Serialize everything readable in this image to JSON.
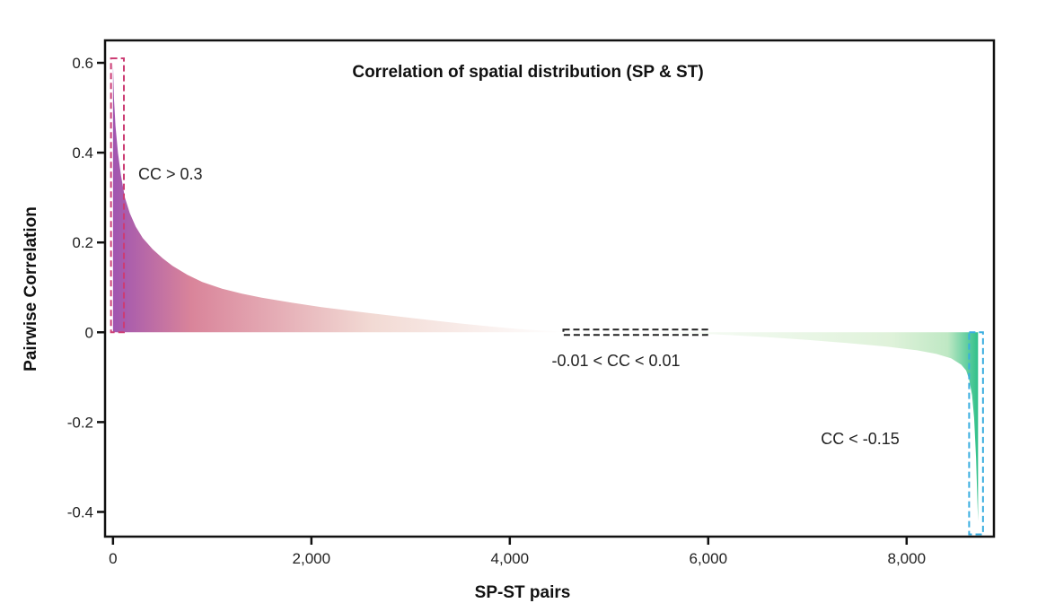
{
  "chart_data": {
    "type": "area",
    "title": "Correlation of spatial distribution (SP & ST)",
    "xlabel": "SP-ST pairs",
    "ylabel": "Pairwise Correlation",
    "xlim": [
      -80,
      8880
    ],
    "ylim": [
      -0.455,
      0.65
    ],
    "x_ticks": [
      0,
      2000,
      4000,
      6000,
      8000
    ],
    "x_tick_labels": [
      "0",
      "2,000",
      "4,000",
      "6,000",
      "8,000"
    ],
    "y_ticks": [
      0.6,
      0.4,
      0.2,
      0,
      -0.2,
      -0.4
    ],
    "y_tick_labels": [
      "0.6",
      "0.4",
      "0.2",
      "0",
      "-0.2",
      "-0.4"
    ],
    "grid": false,
    "legend": "none",
    "series": [
      {
        "x": [
          0,
          10,
          25,
          50,
          80,
          120,
          170,
          230,
          300,
          400,
          500,
          600,
          750,
          900,
          1100,
          1300,
          1500,
          1800,
          2100,
          2500,
          3000,
          3400,
          3800,
          4100,
          4300,
          4600,
          5000,
          5500,
          5900,
          6200,
          6600,
          7000,
          7400,
          7800,
          8100,
          8300,
          8450,
          8550,
          8600,
          8630,
          8660,
          8680,
          8700,
          8720
        ],
        "y": [
          0.6,
          0.52,
          0.46,
          0.4,
          0.35,
          0.3,
          0.265,
          0.235,
          0.21,
          0.185,
          0.165,
          0.148,
          0.128,
          0.112,
          0.097,
          0.086,
          0.077,
          0.066,
          0.056,
          0.045,
          0.032,
          0.022,
          0.013,
          0.007,
          0.004,
          0.001,
          0.0,
          -0.001,
          -0.003,
          -0.006,
          -0.011,
          -0.017,
          -0.024,
          -0.032,
          -0.04,
          -0.048,
          -0.058,
          -0.072,
          -0.085,
          -0.105,
          -0.14,
          -0.19,
          -0.28,
          -0.42
        ]
      }
    ],
    "annotations": [
      {
        "label": "CC > 0.3",
        "x0": -20,
        "x1": 110,
        "y0": 0.0,
        "y1": 0.61,
        "box_color": "#cc3d74"
      },
      {
        "label": "-0.01 < CC < 0.01",
        "x0": 4540,
        "x1": 5990,
        "y0": -0.006,
        "y1": 0.006,
        "box_color": "#222222"
      },
      {
        "label": "CC < -0.15",
        "x0": 8630,
        "x1": 8770,
        "y0": -0.45,
        "y1": 0.0,
        "box_color": "#3aaee0"
      }
    ],
    "colors": {
      "positive_dark": "#a055b0",
      "positive_mid": "#d9849a",
      "positive_light": "#f2dad4",
      "neutral": "#ffffff",
      "negative_light": "#dff2da",
      "negative_mid": "#bfe8c4",
      "negative_dark": "#2fc08a"
    }
  }
}
